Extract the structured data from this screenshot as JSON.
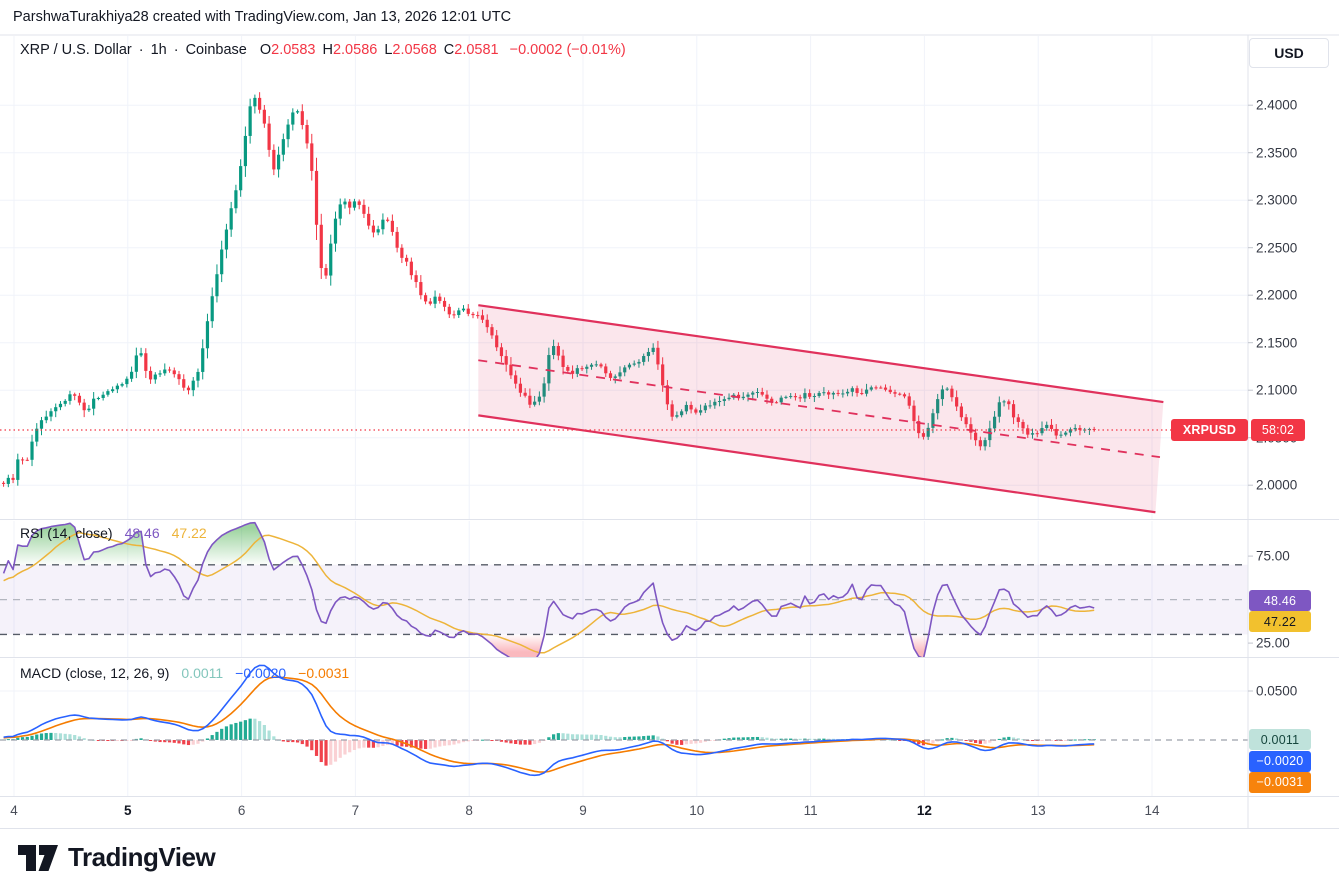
{
  "attribution": "ParshwaTurakhiya28 created with TradingView.com, Jan 13, 2026 12:01 UTC",
  "currency_button": "USD",
  "legend": {
    "symbol": "XRP / U.S. Dollar",
    "separator": "·",
    "interval": "1h",
    "exchange": "Coinbase",
    "ohlc": [
      {
        "label": "O",
        "value": "2.0583"
      },
      {
        "label": "H",
        "value": "2.0586"
      },
      {
        "label": "L",
        "value": "2.0568"
      },
      {
        "label": "C",
        "value": "2.0581"
      }
    ],
    "change": "−0.0002 (−0.01%)"
  },
  "price_axis": {
    "ticks": [
      "2.4000",
      "2.3500",
      "2.3000",
      "2.2500",
      "2.2000",
      "2.1500",
      "2.1000",
      "2.0500",
      "2.0000"
    ],
    "tick_values": [
      2.4,
      2.35,
      2.3,
      2.25,
      2.2,
      2.15,
      2.1,
      2.05,
      2.0
    ]
  },
  "price_line": {
    "symbol_badge": "XRPUSD",
    "countdown": "58:02",
    "current_price": 2.0581,
    "badge_color": "#F23645"
  },
  "time_axis": {
    "labels": [
      "4",
      "5",
      "6",
      "7",
      "8",
      "9",
      "10",
      "11",
      "12",
      "13",
      "14"
    ],
    "bold_labels": [
      "5",
      "12"
    ]
  },
  "rsi_panel": {
    "title": "RSI (14, close)",
    "value_main": "48.46",
    "value_ma": "47.22",
    "color_main": "#7E57C2",
    "color_ma": "#EDB43A",
    "ticks": [
      "75.00",
      "25.00"
    ],
    "badge_main": {
      "text": "48.46",
      "bg": "#7E57C2",
      "fg": "#FFFFFF"
    },
    "badge_ma": {
      "text": "47.22",
      "bg": "#F2C12E",
      "fg": "#131722"
    }
  },
  "macd_panel": {
    "title": "MACD (close, 12, 26, 9)",
    "value_hist": "0.0011",
    "value_macd": "−0.0020",
    "value_signal": "−0.0031",
    "color_hist": "#83C6BC",
    "color_macd": "#2962FF",
    "color_signal": "#F57C00",
    "tick": "0.0500",
    "badges": [
      {
        "text": "0.0011",
        "bg": "#BFE2DB",
        "fg": "#15463D"
      },
      {
        "text": "−0.0020",
        "bg": "#2962FF",
        "fg": "#FFFFFF"
      },
      {
        "text": "−0.0031",
        "bg": "#F7830C",
        "fg": "#FFFFFF"
      }
    ]
  },
  "footer": {
    "logo_text": "TradingView"
  },
  "chart_data": {
    "type": "candlestick",
    "symbol": "XRPUSD",
    "interval": "1h",
    "exchange": "Coinbase",
    "ohlc_display": {
      "open": 2.0583,
      "high": 2.0586,
      "low": 2.0568,
      "close": 2.0581,
      "change": -0.0002,
      "change_pct": -0.01
    },
    "last_close": 2.0581,
    "visible_price_range": [
      1.964,
      2.474
    ],
    "time_range_days": [
      3.88,
      14.85
    ],
    "day_labels": [
      4,
      5,
      6,
      7,
      8,
      9,
      10,
      11,
      12,
      13,
      14
    ],
    "colors": {
      "up": "#089981",
      "down": "#F23645",
      "channel": "#E0315C",
      "channel_fill": "rgba(226,50,95,0.12)",
      "rsi": "#7E57C2",
      "rsi_ma": "#EDB43A",
      "macd": "#2962FF",
      "signal": "#F57C00",
      "hist_pos": "#22AB94",
      "hist_pos_weak": "#ACE0D9",
      "hist_neg": "#F0424C",
      "hist_neg_weak": "#FAD1D4"
    },
    "price_path": [
      [
        2.45,
        1.984
      ],
      [
        2.7,
        1.99
      ],
      [
        3.0,
        1.988
      ],
      [
        3.2,
        1.994
      ],
      [
        3.4,
        1.99
      ],
      [
        3.6,
        2.0
      ],
      [
        3.75,
        1.996
      ],
      [
        3.88,
        2.002
      ],
      [
        4.0,
        2.008
      ],
      [
        4.04,
        2.032
      ],
      [
        4.08,
        2.024
      ],
      [
        4.13,
        2.03
      ],
      [
        4.17,
        2.052
      ],
      [
        4.22,
        2.066
      ],
      [
        4.3,
        2.074
      ],
      [
        4.38,
        2.083
      ],
      [
        4.46,
        2.091
      ],
      [
        4.52,
        2.099
      ],
      [
        4.58,
        2.086
      ],
      [
        4.64,
        2.078
      ],
      [
        4.7,
        2.089
      ],
      [
        4.78,
        2.097
      ],
      [
        4.86,
        2.101
      ],
      [
        4.93,
        2.104
      ],
      [
        5.0,
        2.112
      ],
      [
        5.06,
        2.128
      ],
      [
        5.1,
        2.147
      ],
      [
        5.14,
        2.126
      ],
      [
        5.19,
        2.108
      ],
      [
        5.25,
        2.117
      ],
      [
        5.32,
        2.122
      ],
      [
        5.4,
        2.117
      ],
      [
        5.47,
        2.107
      ],
      [
        5.53,
        2.101
      ],
      [
        5.58,
        2.11
      ],
      [
        5.63,
        2.124
      ],
      [
        5.68,
        2.158
      ],
      [
        5.73,
        2.19
      ],
      [
        5.78,
        2.221
      ],
      [
        5.83,
        2.249
      ],
      [
        5.88,
        2.274
      ],
      [
        5.93,
        2.301
      ],
      [
        5.98,
        2.33
      ],
      [
        6.03,
        2.364
      ],
      [
        6.07,
        2.394
      ],
      [
        6.1,
        2.411
      ],
      [
        6.14,
        2.401
      ],
      [
        6.18,
        2.393
      ],
      [
        6.22,
        2.366
      ],
      [
        6.26,
        2.342
      ],
      [
        6.29,
        2.331
      ],
      [
        6.33,
        2.349
      ],
      [
        6.38,
        2.367
      ],
      [
        6.42,
        2.384
      ],
      [
        6.46,
        2.397
      ],
      [
        6.5,
        2.391
      ],
      [
        6.55,
        2.373
      ],
      [
        6.6,
        2.349
      ],
      [
        6.64,
        2.301
      ],
      [
        6.68,
        2.246
      ],
      [
        6.72,
        2.209
      ],
      [
        6.76,
        2.234
      ],
      [
        6.8,
        2.268
      ],
      [
        6.85,
        2.294
      ],
      [
        6.9,
        2.301
      ],
      [
        6.95,
        2.291
      ],
      [
        7.0,
        2.3
      ],
      [
        7.05,
        2.294
      ],
      [
        7.1,
        2.281
      ],
      [
        7.15,
        2.263
      ],
      [
        7.2,
        2.271
      ],
      [
        7.25,
        2.281
      ],
      [
        7.3,
        2.277
      ],
      [
        7.35,
        2.256
      ],
      [
        7.4,
        2.241
      ],
      [
        7.45,
        2.234
      ],
      [
        7.5,
        2.221
      ],
      [
        7.55,
        2.208
      ],
      [
        7.6,
        2.196
      ],
      [
        7.65,
        2.19
      ],
      [
        7.7,
        2.199
      ],
      [
        7.75,
        2.191
      ],
      [
        7.8,
        2.184
      ],
      [
        7.85,
        2.176
      ],
      [
        7.9,
        2.181
      ],
      [
        7.95,
        2.186
      ],
      [
        8.0,
        2.181
      ],
      [
        8.05,
        2.176
      ],
      [
        8.1,
        2.178
      ],
      [
        8.15,
        2.169
      ],
      [
        8.2,
        2.159
      ],
      [
        8.25,
        2.145
      ],
      [
        8.3,
        2.131
      ],
      [
        8.36,
        2.118
      ],
      [
        8.42,
        2.104
      ],
      [
        8.48,
        2.094
      ],
      [
        8.54,
        2.086
      ],
      [
        8.6,
        2.089
      ],
      [
        8.65,
        2.102
      ],
      [
        8.69,
        2.131
      ],
      [
        8.72,
        2.151
      ],
      [
        8.76,
        2.144
      ],
      [
        8.8,
        2.132
      ],
      [
        8.85,
        2.121
      ],
      [
        8.9,
        2.117
      ],
      [
        8.95,
        2.124
      ],
      [
        9.0,
        2.121
      ],
      [
        9.05,
        2.127
      ],
      [
        9.1,
        2.131
      ],
      [
        9.15,
        2.125
      ],
      [
        9.2,
        2.119
      ],
      [
        9.25,
        2.111
      ],
      [
        9.3,
        2.117
      ],
      [
        9.35,
        2.124
      ],
      [
        9.4,
        2.129
      ],
      [
        9.45,
        2.127
      ],
      [
        9.5,
        2.131
      ],
      [
        9.55,
        2.137
      ],
      [
        9.6,
        2.144
      ],
      [
        9.63,
        2.147
      ],
      [
        9.67,
        2.119
      ],
      [
        9.72,
        2.094
      ],
      [
        9.77,
        2.075
      ],
      [
        9.82,
        2.071
      ],
      [
        9.87,
        2.079
      ],
      [
        9.92,
        2.084
      ],
      [
        9.97,
        2.077
      ],
      [
        10.03,
        2.081
      ],
      [
        10.1,
        2.084
      ],
      [
        10.17,
        2.087
      ],
      [
        10.24,
        2.091
      ],
      [
        10.31,
        2.094
      ],
      [
        10.38,
        2.091
      ],
      [
        10.45,
        2.095
      ],
      [
        10.52,
        2.097
      ],
      [
        10.6,
        2.092
      ],
      [
        10.67,
        2.087
      ],
      [
        10.74,
        2.091
      ],
      [
        10.81,
        2.094
      ],
      [
        10.88,
        2.091
      ],
      [
        10.95,
        2.095
      ],
      [
        11.02,
        2.093
      ],
      [
        11.09,
        2.097
      ],
      [
        11.16,
        2.094
      ],
      [
        11.23,
        2.097
      ],
      [
        11.3,
        2.099
      ],
      [
        11.37,
        2.101
      ],
      [
        11.44,
        2.097
      ],
      [
        11.51,
        2.102
      ],
      [
        11.58,
        2.104
      ],
      [
        11.65,
        2.099
      ],
      [
        11.71,
        2.097
      ],
      [
        11.77,
        2.099
      ],
      [
        11.83,
        2.093
      ],
      [
        11.88,
        2.078
      ],
      [
        11.93,
        2.06
      ],
      [
        11.98,
        2.051
      ],
      [
        12.03,
        2.058
      ],
      [
        12.08,
        2.076
      ],
      [
        12.13,
        2.097
      ],
      [
        12.18,
        2.104
      ],
      [
        12.23,
        2.098
      ],
      [
        12.28,
        2.084
      ],
      [
        12.33,
        2.071
      ],
      [
        12.38,
        2.061
      ],
      [
        12.43,
        2.051
      ],
      [
        12.48,
        2.039
      ],
      [
        12.53,
        2.046
      ],
      [
        12.58,
        2.061
      ],
      [
        12.63,
        2.078
      ],
      [
        12.68,
        2.091
      ],
      [
        12.73,
        2.087
      ],
      [
        12.78,
        2.074
      ],
      [
        12.83,
        2.064
      ],
      [
        12.88,
        2.057
      ],
      [
        12.93,
        2.051
      ],
      [
        12.98,
        2.055
      ],
      [
        13.03,
        2.062
      ],
      [
        13.08,
        2.064
      ],
      [
        13.13,
        2.057
      ],
      [
        13.18,
        2.052
      ],
      [
        13.23,
        2.056
      ],
      [
        13.28,
        2.06
      ],
      [
        13.33,
        2.062
      ],
      [
        13.38,
        2.058
      ],
      [
        13.43,
        2.059
      ],
      [
        13.5,
        2.0581
      ]
    ],
    "channel": {
      "type": "parallel_descending",
      "upper": [
        [
          8.08,
          2.1895
        ],
        [
          14.1,
          2.0875
        ]
      ],
      "lower": [
        [
          8.08,
          2.0735
        ],
        [
          14.03,
          1.9715
        ]
      ],
      "median_dashed": [
        [
          8.08,
          2.1315
        ],
        [
          14.07,
          2.0295
        ]
      ]
    },
    "rsi": {
      "length": 14,
      "source": "close",
      "last": 48.46,
      "ma_last": 47.22,
      "overbought": 70,
      "midline": 50,
      "oversold": 30,
      "axis_ticks": [
        75,
        25
      ]
    },
    "macd": {
      "fast": 12,
      "slow": 26,
      "signal_len": 9,
      "hist_last": 0.0011,
      "macd_last": -0.002,
      "signal_last": -0.0031,
      "axis_tick": 0.05
    }
  }
}
